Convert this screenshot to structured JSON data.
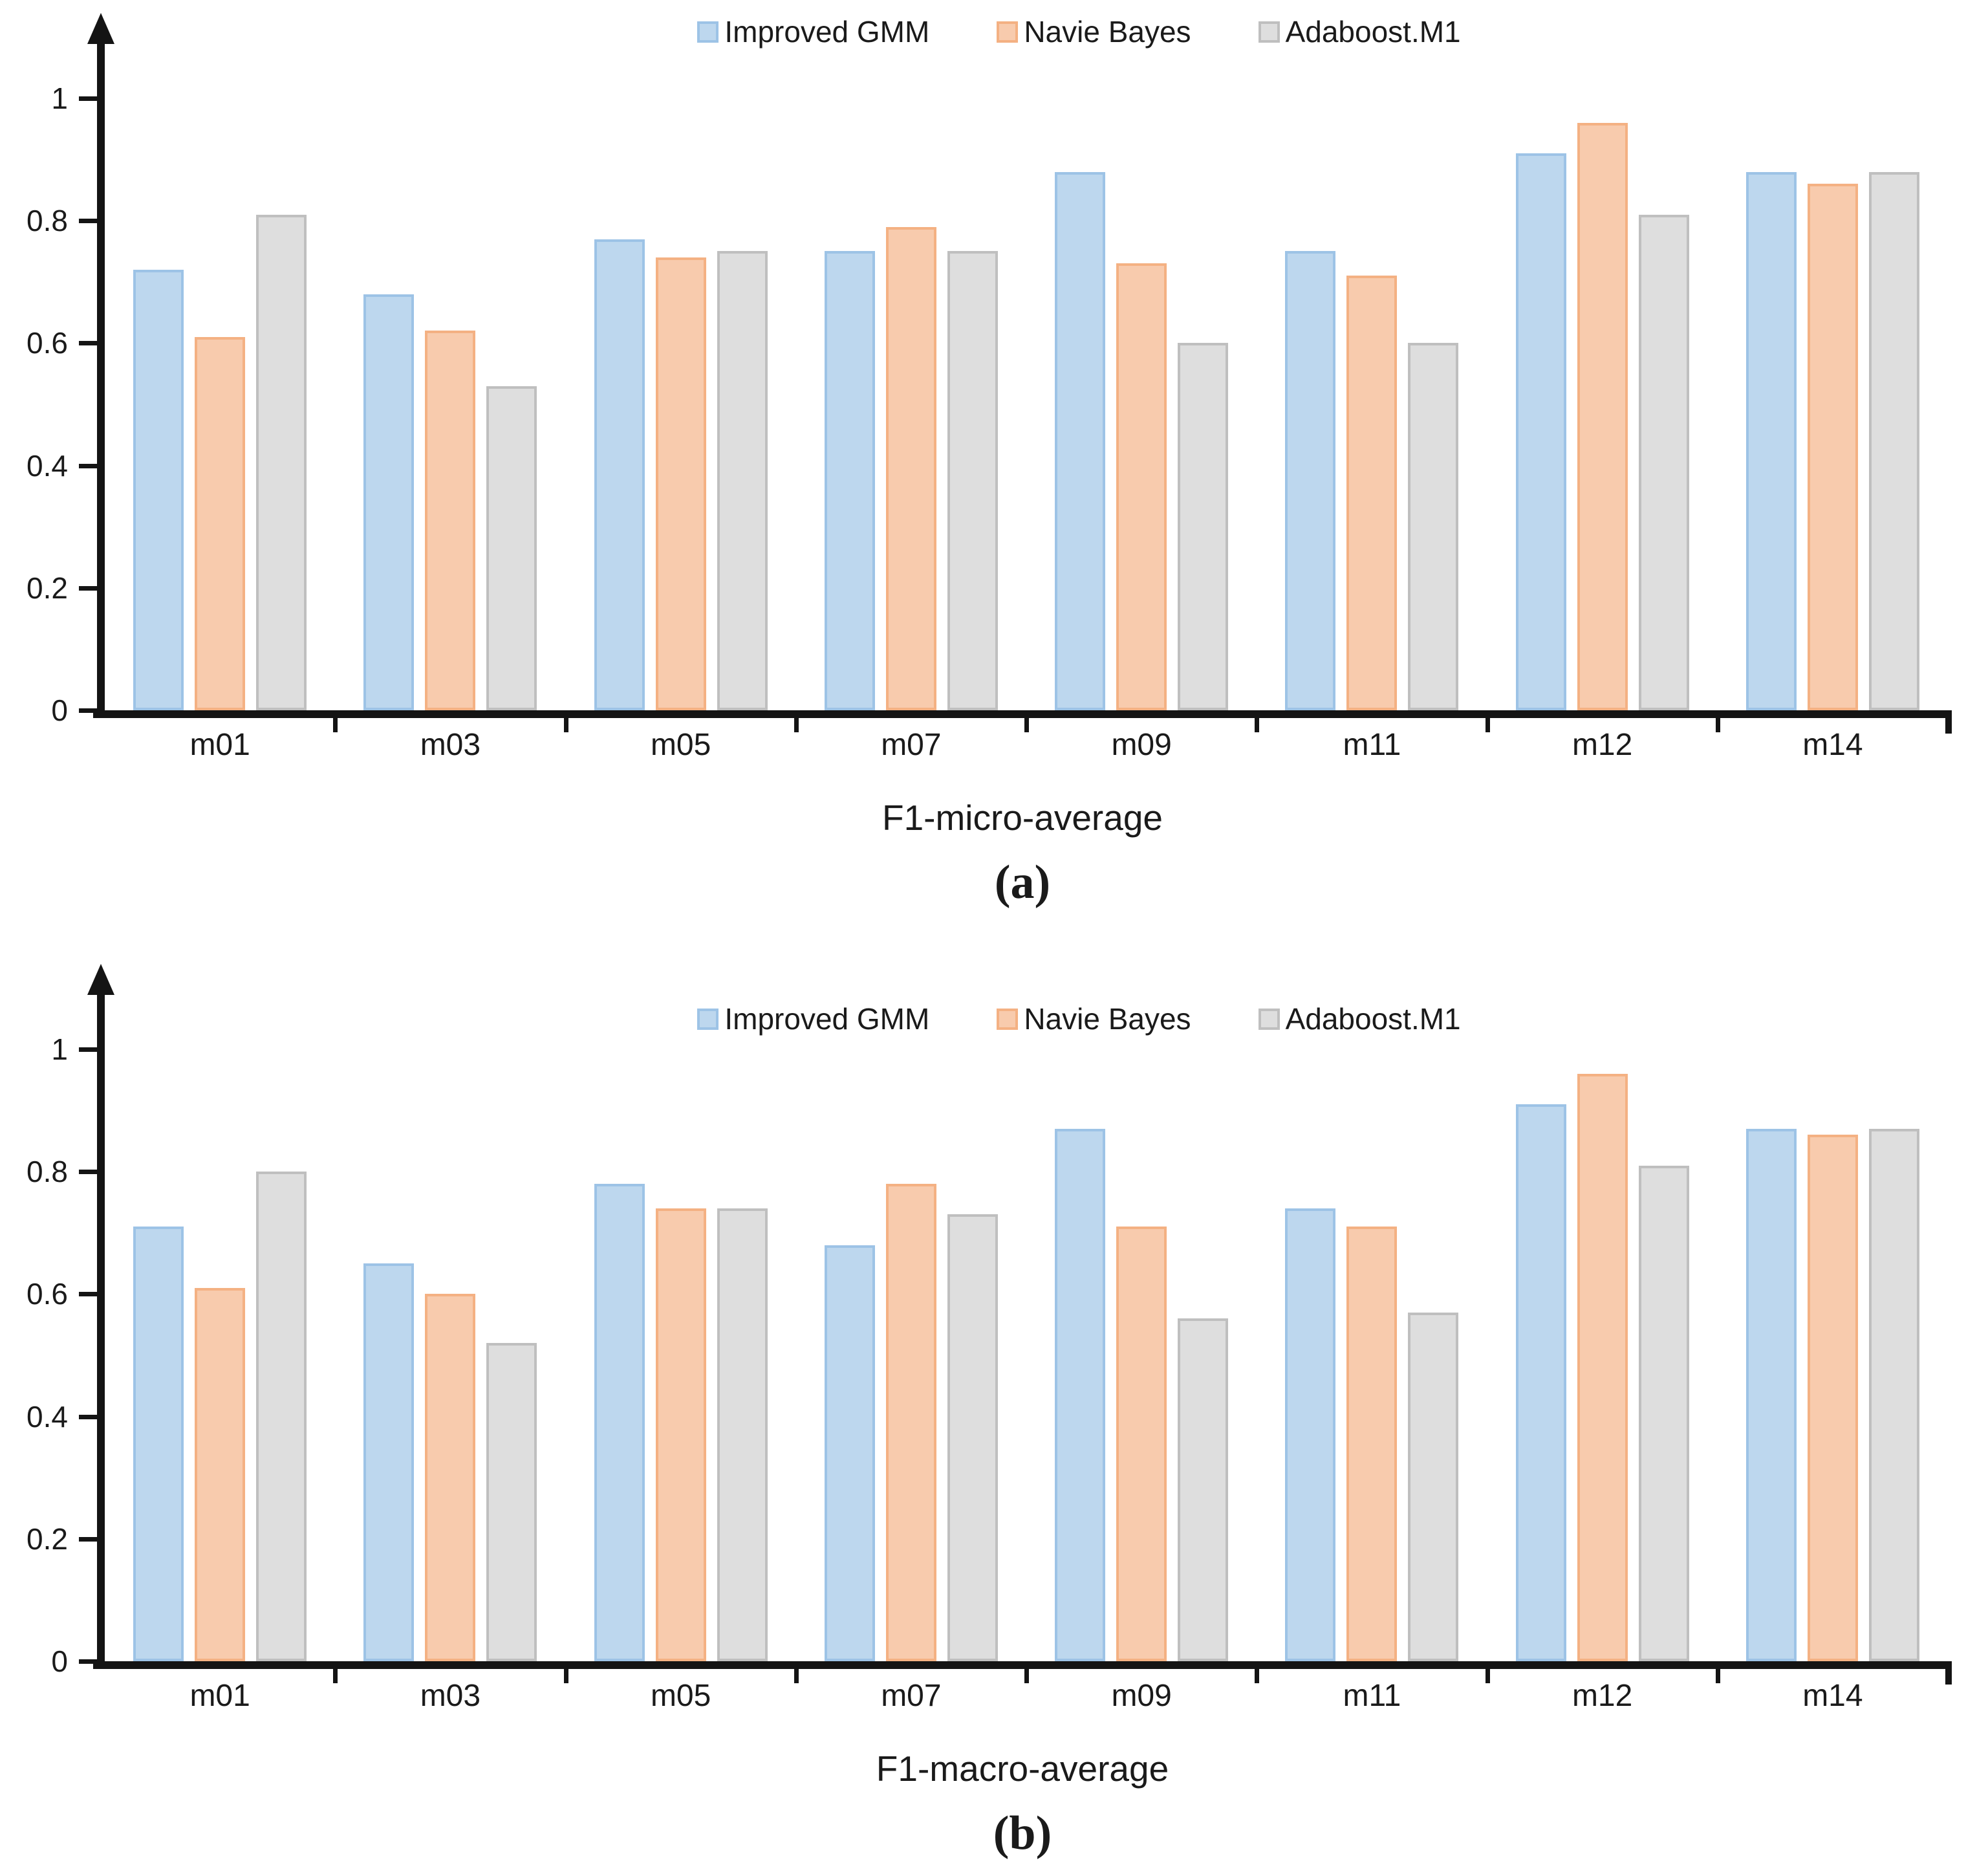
{
  "figure": {
    "background": "#ffffff",
    "axis_color": "#141414",
    "text_color": "#1a1a1a"
  },
  "series_styles": [
    {
      "name": "Improved GMM",
      "fill": "#BDD7EE",
      "border": "#9DC3E6",
      "patterned": false
    },
    {
      "name": "Navie Bayes",
      "fill": "#F8CBAD",
      "border": "#F4B183",
      "patterned": false
    },
    {
      "name": "Adaboost.M1",
      "fill": "#DEDEDE",
      "border": "#BFBFBF",
      "patterned": true
    }
  ],
  "chart_data": [
    {
      "type": "bar",
      "title": "F1-micro-average",
      "caption": "(a)",
      "categories": [
        "m01",
        "m03",
        "m05",
        "m07",
        "m09",
        "m11",
        "m12",
        "m14"
      ],
      "series": [
        {
          "name": "Improved GMM",
          "values": [
            0.72,
            0.68,
            0.77,
            0.75,
            0.88,
            0.75,
            0.91,
            0.88
          ]
        },
        {
          "name": "Navie Bayes",
          "values": [
            0.61,
            0.62,
            0.74,
            0.79,
            0.73,
            0.71,
            0.96,
            0.86
          ]
        },
        {
          "name": "Adaboost.M1",
          "values": [
            0.81,
            0.53,
            0.75,
            0.75,
            0.6,
            0.6,
            0.81,
            0.88
          ]
        }
      ],
      "xlabel": "F1-micro-average",
      "ylabel": "",
      "ylim": [
        0,
        1.1
      ],
      "yticks": [
        0,
        0.2,
        0.4,
        0.6,
        0.8,
        1
      ],
      "ytick_labels": [
        "0",
        "0.2",
        "0.4",
        "0.6",
        "0.8",
        "1"
      ],
      "grid": false,
      "legend_position": "top-center"
    },
    {
      "type": "bar",
      "title": "F1-macro-average",
      "caption": "(b)",
      "categories": [
        "m01",
        "m03",
        "m05",
        "m07",
        "m09",
        "m11",
        "m12",
        "m14"
      ],
      "series": [
        {
          "name": "Improved GMM",
          "values": [
            0.71,
            0.65,
            0.78,
            0.68,
            0.87,
            0.74,
            0.91,
            0.87
          ]
        },
        {
          "name": "Navie Bayes",
          "values": [
            0.61,
            0.6,
            0.74,
            0.78,
            0.71,
            0.71,
            0.96,
            0.86
          ]
        },
        {
          "name": "Adaboost.M1",
          "values": [
            0.8,
            0.52,
            0.74,
            0.73,
            0.56,
            0.57,
            0.81,
            0.87
          ]
        }
      ],
      "xlabel": "F1-macro-average",
      "ylabel": "",
      "ylim": [
        0,
        1.1
      ],
      "yticks": [
        0,
        0.2,
        0.4,
        0.6,
        0.8,
        1
      ],
      "ytick_labels": [
        "0",
        "0.2",
        "0.4",
        "0.6",
        "0.8",
        "1"
      ],
      "grid": false,
      "legend_position": "top-center"
    }
  ]
}
